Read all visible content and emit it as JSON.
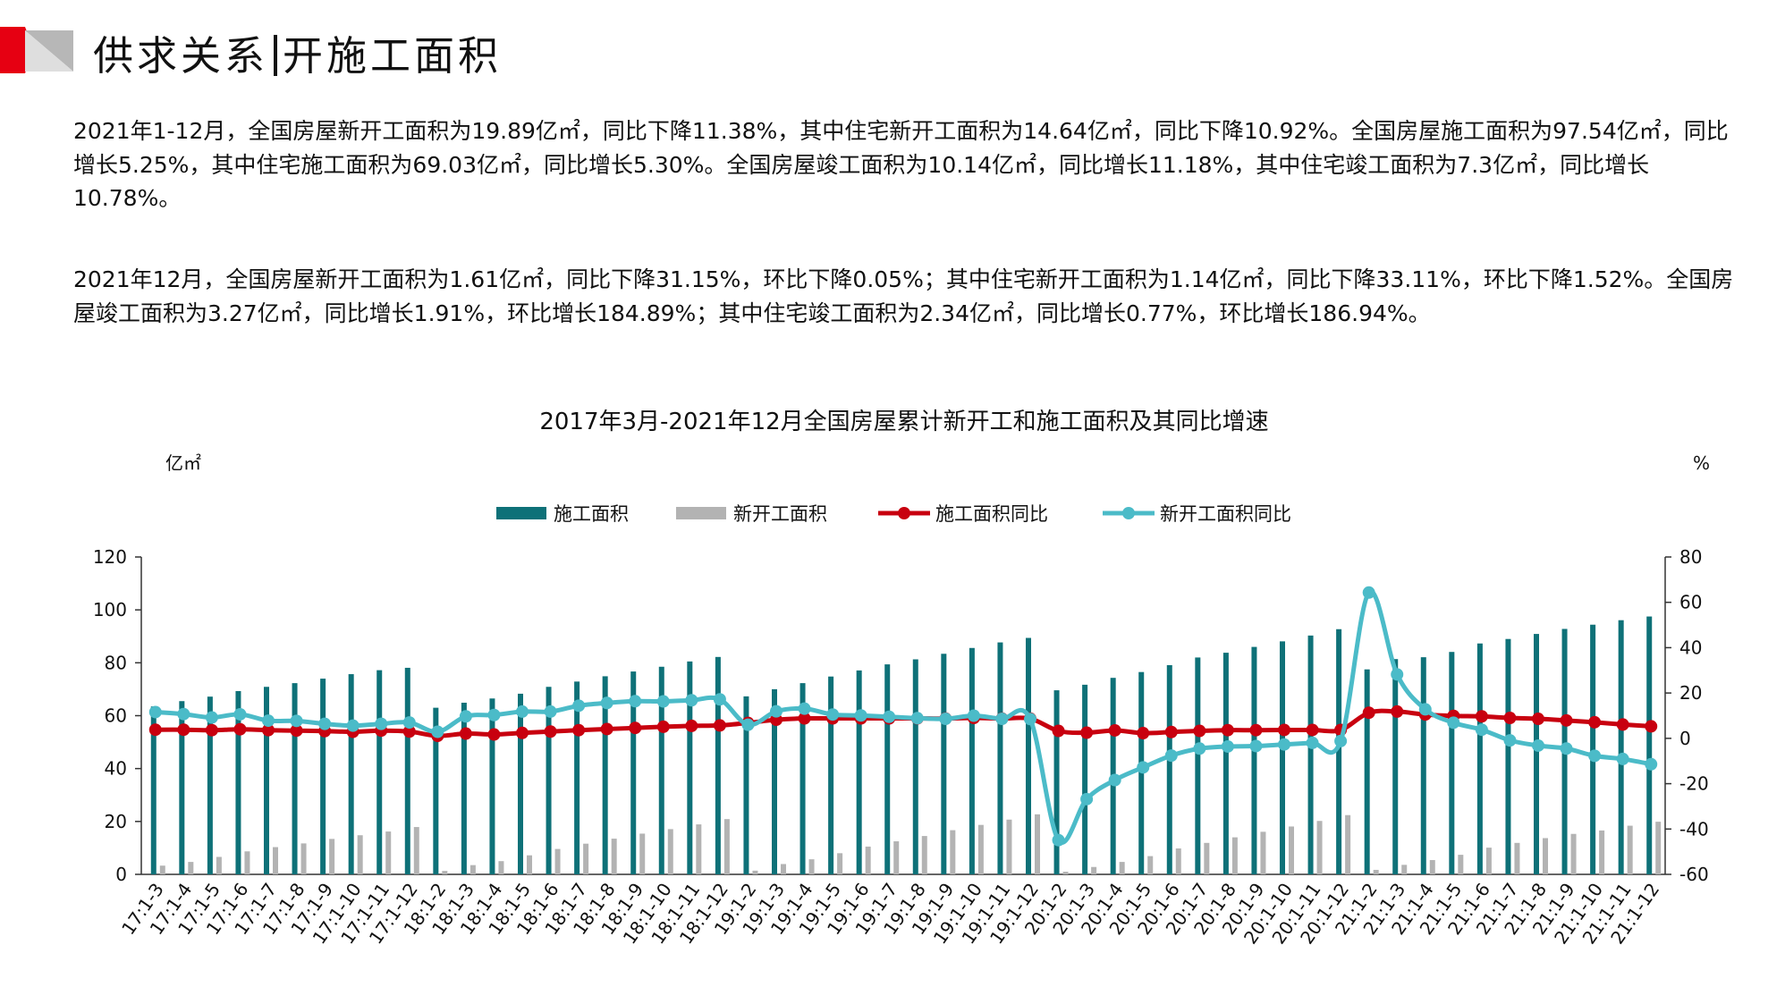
{
  "header": {
    "title_left": "供求关系",
    "title_right": "开施工面积",
    "accent_color": "#e60012"
  },
  "paragraphs": [
    "2021年1-12月，全国房屋新开工面积为19.89亿㎡，同比下降11.38%，其中住宅新开工面积为14.64亿㎡，同比下降10.92%。全国房屋施工面积为97.54亿㎡，同比增长5.25%，其中住宅施工面积为69.03亿㎡，同比增长5.30%。全国房屋竣工面积为10.14亿㎡，同比增长11.18%，其中住宅竣工面积为7.3亿㎡，同比增长10.78%。",
    "2021年12月，全国房屋新开工面积为1.61亿㎡，同比下降31.15%，环比下降0.05%；其中住宅新开工面积为1.14亿㎡，同比下降33.11%，环比下降1.52%。全国房屋竣工面积为3.27亿㎡，同比增长1.91%，环比增长184.89%；其中住宅竣工面积为2.34亿㎡，同比增长0.77%，环比增长186.94%。"
  ],
  "chart_data": {
    "type": "bar",
    "title": "2017年3月-2021年12月全国房屋累计新开工和施工面积及其同比增速",
    "ylabel": "亿㎡",
    "y2label": "%",
    "ylim": [
      0,
      120
    ],
    "y2lim": [
      -60,
      80
    ],
    "yticks": [
      0,
      20,
      40,
      60,
      80,
      100,
      120
    ],
    "y2ticks": [
      -60,
      -40,
      -20,
      0,
      20,
      40,
      60,
      80
    ],
    "legend_position": "top",
    "categories": [
      "17:1-3",
      "17:1-4",
      "17:1-5",
      "17:1-6",
      "17:1-7",
      "17:1-8",
      "17:1-9",
      "17:1-10",
      "17:1-11",
      "17:1-12",
      "18:1-2",
      "18:1-3",
      "18:1-4",
      "18:1-5",
      "18:1-6",
      "18:1-7",
      "18:1-8",
      "18:1-9",
      "18:1-10",
      "18:1-11",
      "18:1-12",
      "19:1-2",
      "19:1-3",
      "19:1-4",
      "19:1-5",
      "19:1-6",
      "19:1-7",
      "19:1-8",
      "19:1-9",
      "19:1-10",
      "19:1-11",
      "19:1-12",
      "20:1-2",
      "20:1-3",
      "20:1-4",
      "20:1-5",
      "20:1-6",
      "20:1-7",
      "20:1-8",
      "20:1-9",
      "20:1-10",
      "20:1-11",
      "20:1-12",
      "21:1-2",
      "21:1-3",
      "21:1-4",
      "21:1-5",
      "21:1-6",
      "21:1-7",
      "21:1-8",
      "21:1-9",
      "21:1-10",
      "21:1-11",
      "21:1-12"
    ],
    "series": [
      {
        "name": "施工面积",
        "kind": "bar",
        "axis": "left",
        "color": "#0e7178",
        "values": [
          63.5,
          65.5,
          67.2,
          69.3,
          70.9,
          72.3,
          74.0,
          75.7,
          77.2,
          78.1,
          63.0,
          64.9,
          66.5,
          68.3,
          70.9,
          72.9,
          74.9,
          76.7,
          78.5,
          80.5,
          82.2,
          67.3,
          70.0,
          72.3,
          74.8,
          77.1,
          79.4,
          81.3,
          83.4,
          85.6,
          87.7,
          89.4,
          69.6,
          71.7,
          74.3,
          76.5,
          79.1,
          82.0,
          83.8,
          86.0,
          88.1,
          90.3,
          92.7,
          77.5,
          81.4,
          82.1,
          84.1,
          87.3,
          89.0,
          90.9,
          92.8,
          94.4,
          96.1,
          97.5
        ]
      },
      {
        "name": "新开工面积",
        "kind": "bar",
        "axis": "left",
        "color": "#b3b3b3",
        "values": [
          3.3,
          4.7,
          6.6,
          8.7,
          10.3,
          11.7,
          13.4,
          14.8,
          16.2,
          17.9,
          1.3,
          3.5,
          5.0,
          7.2,
          9.6,
          11.6,
          13.5,
          15.4,
          17.1,
          18.9,
          20.9,
          1.4,
          3.9,
          5.7,
          8.0,
          10.5,
          12.5,
          14.5,
          16.7,
          18.7,
          20.7,
          22.7,
          1.0,
          2.8,
          4.7,
          6.9,
          9.8,
          11.9,
          14.0,
          16.1,
          18.1,
          20.2,
          22.4,
          1.7,
          3.6,
          5.4,
          7.4,
          10.1,
          11.9,
          13.7,
          15.3,
          16.6,
          18.4,
          19.9
        ]
      },
      {
        "name": "施工面积同比",
        "kind": "line",
        "axis": "right",
        "color": "#c8000f",
        "values": [
          3.8,
          3.8,
          3.6,
          4.0,
          3.6,
          3.4,
          3.2,
          2.9,
          3.4,
          3.0,
          1.1,
          2.1,
          1.7,
          2.4,
          3.0,
          3.6,
          4.1,
          4.6,
          5.1,
          5.5,
          5.7,
          6.8,
          8.2,
          8.8,
          8.8,
          8.8,
          8.8,
          8.8,
          8.7,
          9.0,
          8.7,
          8.7,
          3.3,
          2.5,
          3.5,
          2.3,
          2.8,
          3.3,
          3.6,
          3.6,
          3.7,
          3.7,
          3.7,
          11.3,
          11.8,
          10.5,
          9.9,
          9.7,
          9.0,
          8.6,
          7.9,
          7.1,
          6.1,
          5.3
        ]
      },
      {
        "name": "新开工面积同比",
        "kind": "line",
        "axis": "right",
        "color": "#4bbbc8",
        "values": [
          11.6,
          10.7,
          9.2,
          10.6,
          7.8,
          7.7,
          6.4,
          5.6,
          6.4,
          7.0,
          2.9,
          9.7,
          10.3,
          11.8,
          11.8,
          14.4,
          15.6,
          16.4,
          16.3,
          16.8,
          17.2,
          6.0,
          11.9,
          13.1,
          10.5,
          10.1,
          9.5,
          8.9,
          8.6,
          10.0,
          8.6,
          8.5,
          -44.9,
          -26.8,
          -18.4,
          -12.8,
          -7.6,
          -4.5,
          -3.6,
          -3.4,
          -2.7,
          -2.0,
          -1.2,
          64.3,
          28.2,
          12.8,
          6.9,
          3.8,
          -0.9,
          -3.2,
          -4.5,
          -7.7,
          -9.1,
          -11.4
        ]
      }
    ]
  }
}
